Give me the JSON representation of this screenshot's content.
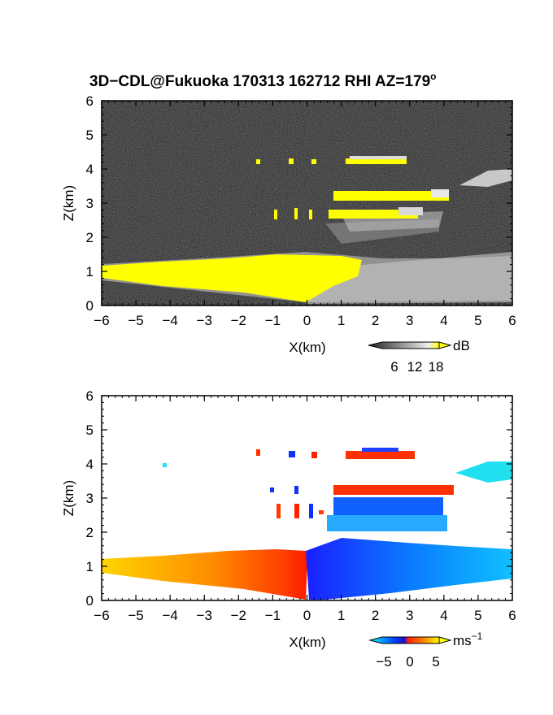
{
  "title_main": "3D−CDL@Fukuoka 170313 162712 RHI AZ=179",
  "title_sup": "o",
  "chart_data": [
    {
      "type": "heatmap",
      "quantity": "backscatter",
      "xlabel": "X(km)",
      "ylabel": "Z(km)",
      "xlim": [
        -6,
        6
      ],
      "ylim": [
        0,
        6
      ],
      "xticks": [
        -6,
        -5,
        -4,
        -3,
        -2,
        -1,
        0,
        1,
        2,
        3,
        4,
        5,
        6
      ],
      "yticks": [
        0,
        1,
        2,
        3,
        4,
        5,
        6
      ],
      "colorbar": {
        "unit": "dB",
        "ticks": [
          "6",
          "12",
          "18"
        ],
        "range": [
          0,
          20
        ],
        "palette": "grayscale-yellow"
      },
      "features": [
        {
          "label": "boundary layer",
          "x_range": [
            -6,
            6
          ],
          "z_top": 1.3
        },
        {
          "label": "cloud layer",
          "x_range": [
            1,
            4.1
          ],
          "z": 3.1
        },
        {
          "label": "cloud layer",
          "x_range": [
            0.7,
            4.0
          ],
          "z": 2.7
        },
        {
          "label": "cloud layer",
          "x_range": [
            1.2,
            3.0
          ],
          "z": 4.3
        },
        {
          "label": "upper layer",
          "x_range": [
            4.0,
            6.0
          ],
          "z": 3.7
        }
      ]
    },
    {
      "type": "heatmap",
      "quantity": "radial velocity",
      "xlabel": "X(km)",
      "ylabel": "Z(km)",
      "xlim": [
        -6,
        6
      ],
      "ylim": [
        0,
        6
      ],
      "xticks": [
        -6,
        -5,
        -4,
        -3,
        -2,
        -1,
        0,
        1,
        2,
        3,
        4,
        5,
        6
      ],
      "yticks": [
        0,
        1,
        2,
        3,
        4,
        5,
        6
      ],
      "colorbar": {
        "unit": "ms",
        "unit_sup": "−1",
        "ticks": [
          "−5",
          "0",
          "5"
        ],
        "range": [
          -7,
          7
        ],
        "palette": "cyan-blue-red-yellow"
      }
    }
  ],
  "colors": {
    "yellow": "#ffff00",
    "cyan": "#00ffff",
    "blue": "#0000ff",
    "red": "#ff0000"
  }
}
